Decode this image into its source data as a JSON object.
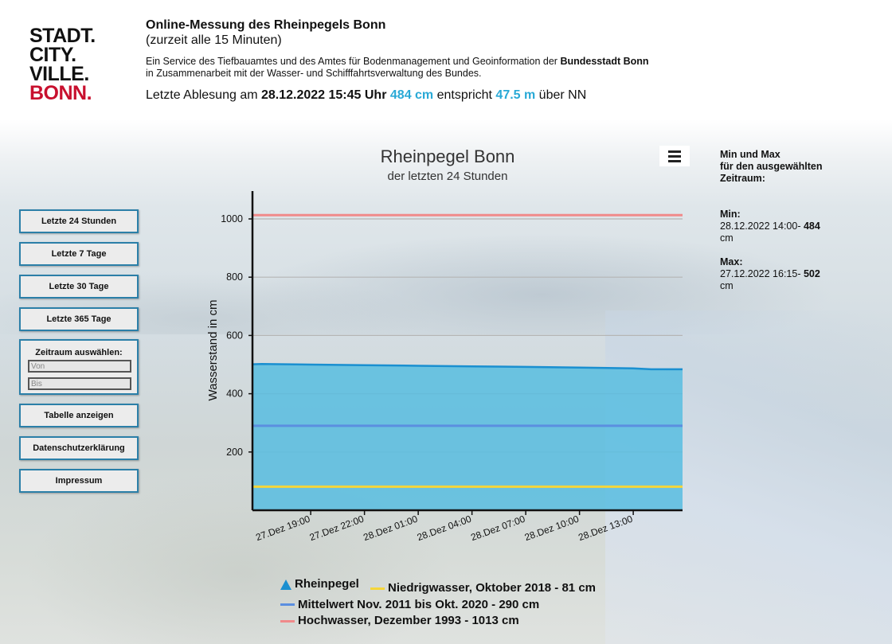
{
  "logo": {
    "lines": [
      "STADT.",
      "CITY.",
      "VILLE.",
      "BONN."
    ]
  },
  "header": {
    "title": "Online-Messung des Rheinpegels Bonn",
    "subtitle": "(zurzeit alle 15 Minuten)",
    "desc_line1_a": "Ein Service des Tiefbauamtes und des Amtes für Bodenmanagement und Geoinformation der ",
    "desc_line1_b": "Bundesstadt Bonn",
    "desc_line2": "in Zusammenarbeit mit der Wasser- und Schifffahrtsverwaltung des Bundes.",
    "reading_prefix": "Letzte Ablesung am ",
    "reading_datetime": "28.12.2022 15:45 Uhr",
    "reading_cm": "484 cm",
    "reading_mid": " entspricht ",
    "reading_nn": "47.5 m",
    "reading_suffix": " über NN"
  },
  "sidebar": {
    "btn_24h": "Letzte 24 Stunden",
    "btn_7d": "Letzte 7 Tage",
    "btn_30d": "Letzte 30 Tage",
    "btn_365d": "Letzte 365 Tage",
    "range_label": "Zeitraum auswählen:",
    "from_placeholder": "Von",
    "to_placeholder": "Bis",
    "btn_table": "Tabelle anzeigen",
    "btn_privacy": "Datenschutzerklärung",
    "btn_imprint": "Impressum"
  },
  "side_info": {
    "heading_1": "Min und Max",
    "heading_2": "für den ausgewählten",
    "heading_3": "Zeitraum:",
    "min_label": "Min:",
    "min_time": "28.12.2022 14:00- ",
    "min_value": "484",
    "min_unit": "cm",
    "max_label": "Max:",
    "max_time": "27.12.2022 16:15- ",
    "max_value": "502",
    "max_unit": "cm"
  },
  "colors": {
    "rheinpegel_fill": "#58bde0",
    "rheinpegel_line": "#1a8fd0",
    "niedrigwasser": "#f5d63a",
    "mittelwert": "#5b8fe0",
    "hochwasser": "#f08a8a",
    "accent_blue": "#29a9d6",
    "button_border": "#2b7fa8"
  },
  "chart_data": {
    "type": "area",
    "title": "Rheinpegel Bonn",
    "subtitle": "der letzten 24 Stunden",
    "ylabel": "Wasserstand in cm",
    "ylim": [
      0,
      1000
    ],
    "yticks": [
      200,
      400,
      600,
      800,
      1000
    ],
    "xticks": [
      "27.Dez 19:00",
      "27.Dez 22:00",
      "28.Dez 01:00",
      "28.Dez 04:00",
      "28.Dez 07:00",
      "28.Dez 10:00",
      "28.Dez 13:00"
    ],
    "x_start": "27.12.2022 15:45",
    "x_end": "28.12.2022 15:45",
    "series": [
      {
        "name": "Rheinpegel",
        "x": [
          "27.Dez 15:45",
          "27.Dez 16:15",
          "27.Dez 19:00",
          "27.Dez 22:00",
          "28.Dez 01:00",
          "28.Dez 04:00",
          "28.Dez 07:00",
          "28.Dez 10:00",
          "28.Dez 13:00",
          "28.Dez 14:00",
          "28.Dez 15:45"
        ],
        "values": [
          501,
          502,
          500,
          498,
          496,
          494,
          492,
          490,
          487,
          484,
          484
        ]
      }
    ],
    "reference_lines": [
      {
        "name": "Niedrigwasser, Oktober 2018 - 81 cm",
        "value": 81
      },
      {
        "name": "Mittelwert Nov. 2011 bis Okt. 2020 - 290 cm",
        "value": 290
      },
      {
        "name": "Hochwasser, Dezember 1993 - 1013 cm",
        "value": 1013
      }
    ],
    "legend": [
      "Rheinpegel",
      "Niedrigwasser, Oktober 2018 - 81 cm",
      "Mittelwert Nov. 2011 bis Okt. 2020 - 290 cm",
      "Hochwasser, Dezember 1993 - 1013 cm"
    ],
    "legend_position": "bottom"
  }
}
